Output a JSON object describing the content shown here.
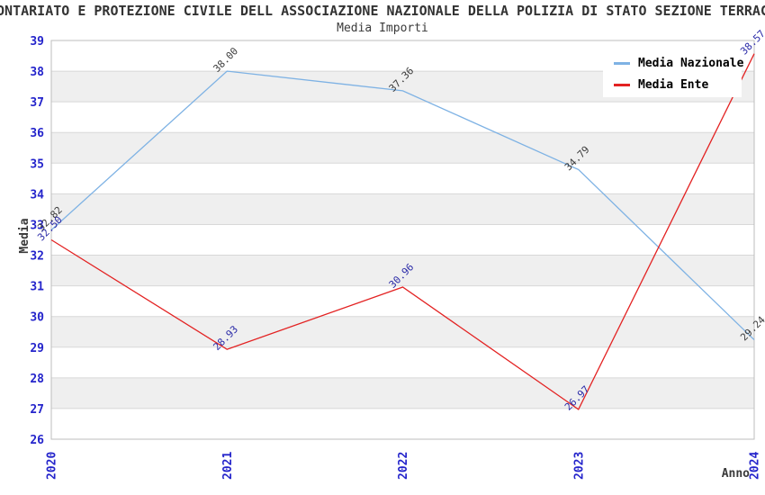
{
  "chart_data": {
    "type": "line",
    "title": "ONTARIATO E PROTEZIONE CIVILE DELL ASSOCIAZIONE NAZIONALE DELLA POLIZIA DI STATO SEZIONE TERRAC",
    "subtitle": "Media Importi",
    "xlabel": "Anno",
    "ylabel": "Media",
    "categories": [
      "2020",
      "2021",
      "2022",
      "2023",
      "2024"
    ],
    "ylim": [
      26,
      39
    ],
    "ytick_step": 1,
    "grid": true,
    "legend_position": "top-right",
    "series": [
      {
        "name": "Media Nazionale",
        "color": "#7EB2E4",
        "label_color": "#3C3C3C",
        "values": [
          32.82,
          38.0,
          37.36,
          34.79,
          29.24
        ],
        "point_labels": [
          "32.82",
          "38.00",
          "37.36",
          "34.79",
          "29.24"
        ]
      },
      {
        "name": "Media Ente",
        "color": "#E32222",
        "label_color": "#2B2BA8",
        "values": [
          32.5,
          28.93,
          30.96,
          26.97,
          38.57
        ],
        "point_labels": [
          "32.50",
          "28.93",
          "30.96",
          "26.97",
          "38.57"
        ]
      }
    ],
    "colors": {
      "axis_tick_labels": "#2424CB",
      "band_fill": "#EFEFEF",
      "gridline": "#D8D8D8",
      "plot_border": "#BDBDBD",
      "axis_title_text": "#3A3A3A",
      "title_text": "#333333",
      "legend_text": "#000000"
    }
  }
}
